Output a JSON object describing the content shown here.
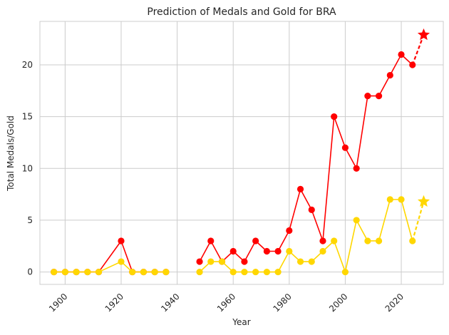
{
  "chart_data": {
    "type": "line",
    "title": "Prediction of Medals and Gold for BRA",
    "xlabel": "Year",
    "ylabel": "Total Medals/Gold",
    "xlim": [
      1891,
      2035
    ],
    "ylim": [
      -1.2,
      24.2
    ],
    "xticks": [
      1900,
      1920,
      1940,
      1960,
      1980,
      2000,
      2020
    ],
    "yticks": [
      0,
      5,
      10,
      15,
      20
    ],
    "grid": true,
    "legend": "none",
    "series": [
      {
        "color": "#ff0000",
        "role": "total medals",
        "segments": [
          {
            "x": [
              1896,
              1900,
              1904,
              1908,
              1912,
              1920,
              1924,
              1928,
              1932,
              1936
            ],
            "y": [
              0,
              0,
              0,
              0,
              0,
              3,
              0,
              0,
              0,
              0
            ]
          },
          {
            "x": [
              1948,
              1952,
              1956,
              1960,
              1964,
              1968,
              1972,
              1976,
              1980,
              1984,
              1988,
              1992,
              1996,
              2000,
              2004,
              2008,
              2012,
              2016,
              2020,
              2024
            ],
            "y": [
              1,
              3,
              1,
              2,
              1,
              3,
              2,
              2,
              4,
              8,
              6,
              3,
              15,
              12,
              10,
              17,
              17,
              19,
              21,
              20
            ]
          }
        ],
        "prediction": {
          "x": [
            2024,
            2028
          ],
          "y": [
            20,
            22.9
          ]
        }
      },
      {
        "color": "#ffd700",
        "role": "gold medals",
        "segments": [
          {
            "x": [
              1896,
              1900,
              1904,
              1908,
              1912,
              1920,
              1924,
              1928,
              1932,
              1936
            ],
            "y": [
              0,
              0,
              0,
              0,
              0,
              1,
              0,
              0,
              0,
              0
            ]
          },
          {
            "x": [
              1948,
              1952,
              1956,
              1960,
              1964,
              1968,
              1972,
              1976,
              1980,
              1984,
              1988,
              1992,
              1996,
              2000,
              2004,
              2008,
              2012,
              2016,
              2020,
              2024
            ],
            "y": [
              0,
              1,
              1,
              0,
              0,
              0,
              0,
              0,
              2,
              1,
              1,
              2,
              3,
              0,
              5,
              3,
              3,
              7,
              7,
              3
            ]
          }
        ],
        "prediction": {
          "x": [
            2024,
            2028
          ],
          "y": [
            3,
            6.8
          ]
        }
      }
    ]
  }
}
